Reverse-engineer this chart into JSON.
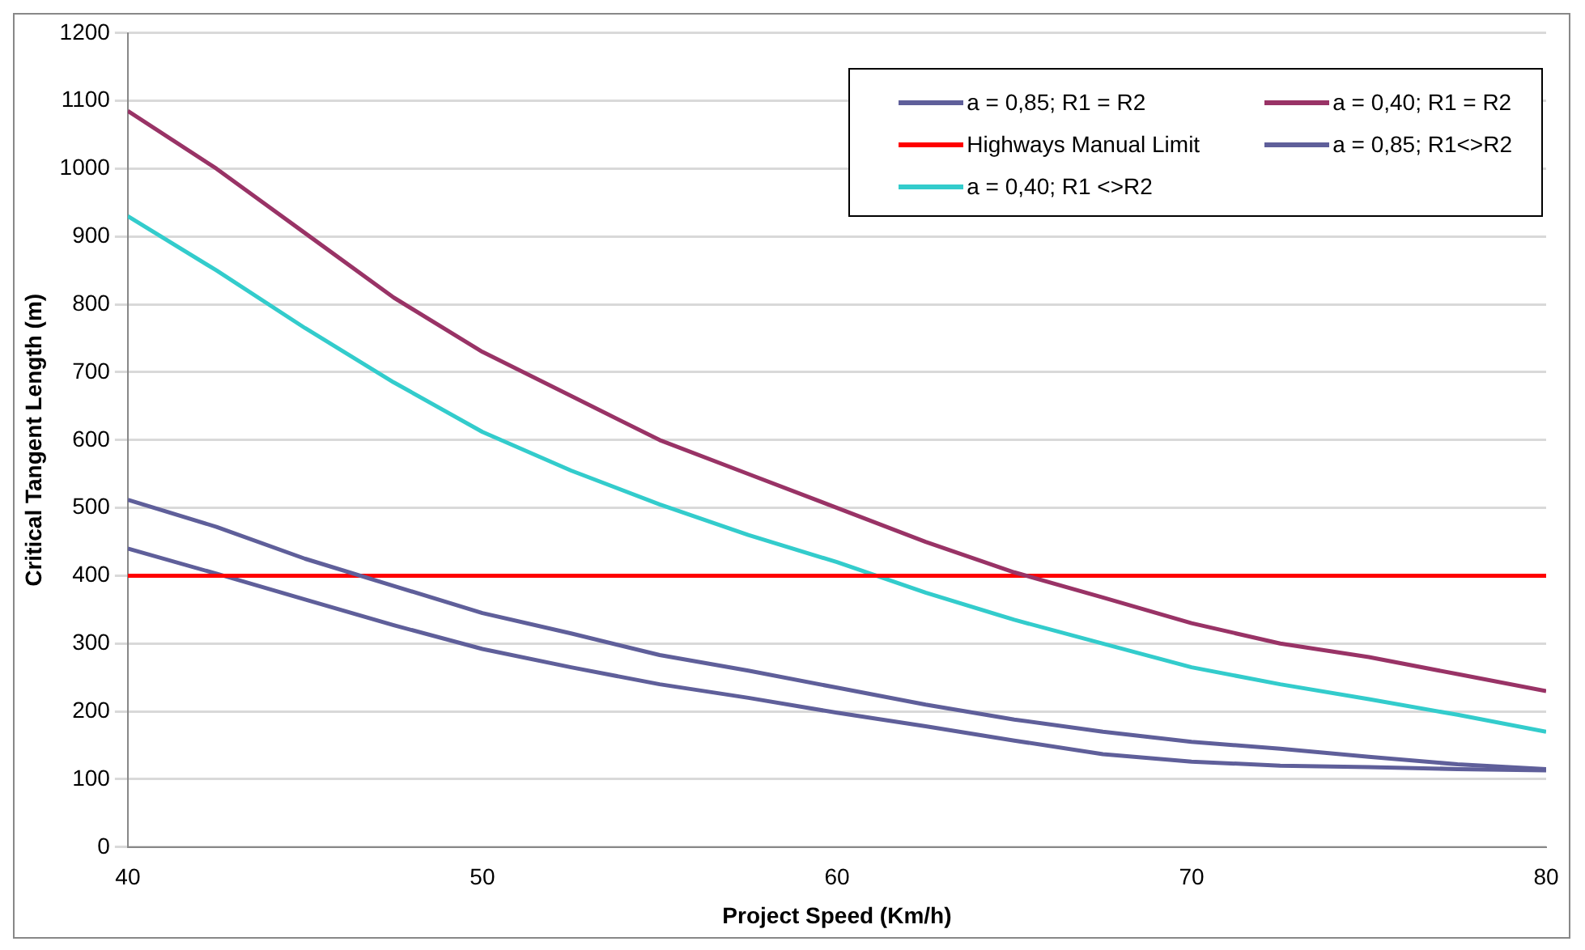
{
  "chart_data": {
    "type": "line",
    "xlabel": "Project Speed (Km/h)",
    "ylabel": "Critical Tangent Length (m)",
    "x": [
      40,
      42.5,
      45,
      47.5,
      50,
      52.5,
      55,
      57.5,
      60,
      62.5,
      65,
      67.5,
      70,
      72.5,
      75,
      77.5,
      80
    ],
    "series": [
      {
        "name": "a = 0,85; R1 = R2",
        "color": "#5f5f9a",
        "values": [
          512,
          472,
          425,
          385,
          345,
          315,
          283,
          260,
          235,
          210,
          188,
          170,
          155,
          145,
          133,
          122,
          115
        ]
      },
      {
        "name": "a = 0,40; R1 = R2",
        "color": "#993366",
        "values": [
          1085,
          1000,
          905,
          810,
          730,
          665,
          600,
          550,
          500,
          450,
          405,
          368,
          330,
          300,
          280,
          255,
          230
        ]
      },
      {
        "name": "Highways Manual Limit",
        "color": "#ff0000",
        "values": [
          400,
          400,
          400,
          400,
          400,
          400,
          400,
          400,
          400,
          400,
          400,
          400,
          400,
          400,
          400,
          400,
          400
        ]
      },
      {
        "name": "a = 0,85; R1<>R2",
        "color": "#5f5f9a",
        "values": [
          440,
          403,
          365,
          327,
          292,
          265,
          240,
          220,
          198,
          178,
          157,
          137,
          126,
          120,
          118,
          115,
          113
        ]
      },
      {
        "name": "a = 0,40; R1 <>R2",
        "color": "#33cccc",
        "values": [
          930,
          850,
          765,
          685,
          612,
          555,
          505,
          460,
          420,
          375,
          335,
          300,
          265,
          240,
          218,
          195,
          170
        ]
      }
    ],
    "xlim": [
      40,
      80
    ],
    "xticks": [
      40,
      50,
      60,
      70,
      80
    ],
    "ylim": [
      0,
      1200
    ],
    "yticks": [
      0,
      100,
      200,
      300,
      400,
      500,
      600,
      700,
      800,
      900,
      1000,
      1100,
      1200
    ],
    "grid": "y",
    "legend": "top right",
    "marker": "none",
    "line_style": "solid"
  }
}
